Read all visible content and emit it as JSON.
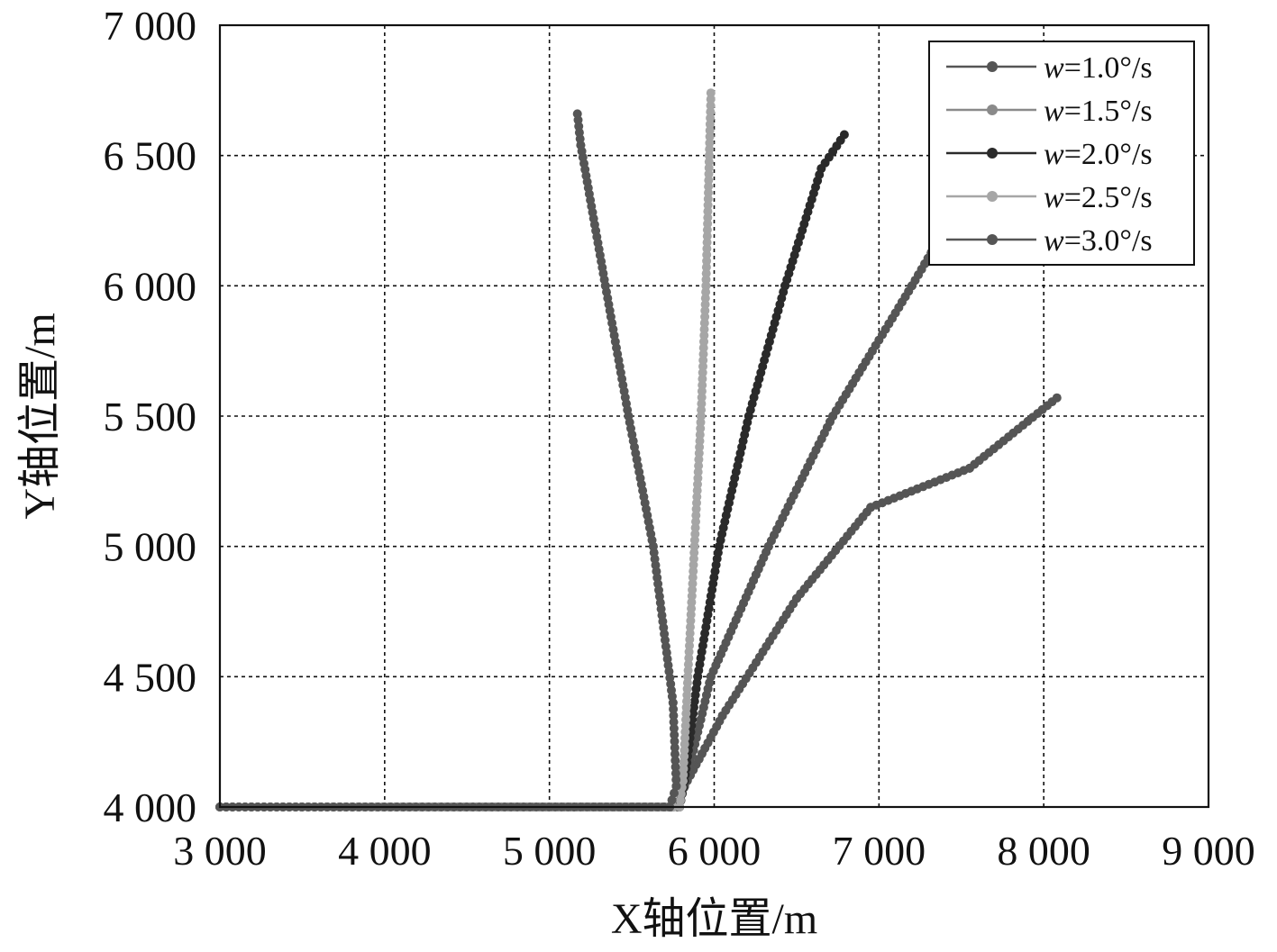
{
  "chart_data": {
    "type": "line",
    "xlabel": "X轴位置/m",
    "ylabel": "Y轴位置/m",
    "xlim": [
      3000,
      9000
    ],
    "ylim": [
      4000,
      7000
    ],
    "x_ticks": [
      "3 000",
      "4 000",
      "5 000",
      "6 000",
      "7 000",
      "8 000",
      "9 000"
    ],
    "y_ticks": [
      "4 000",
      "4 500",
      "5 000",
      "5 500",
      "6 000",
      "6 500",
      "7 000"
    ],
    "grid": true,
    "legend_position": "top-right",
    "series": [
      {
        "name": "w=1.0°/s",
        "color": "#555555",
        "dot_color": "#555555",
        "points": [
          [
            3000,
            4000
          ],
          [
            5780,
            4000
          ],
          [
            5830,
            4100
          ],
          [
            5980,
            4500
          ],
          [
            6330,
            5000
          ],
          [
            6720,
            5500
          ],
          [
            7200,
            6000
          ],
          [
            7550,
            6380
          ]
        ]
      },
      {
        "name": "w=1.5°/s",
        "color": "#8a8a8a",
        "dot_color": "#8a8a8a",
        "points": [
          [
            3000,
            4000
          ],
          [
            5780,
            4000
          ],
          [
            5830,
            4100
          ],
          [
            5980,
            4500
          ],
          [
            6330,
            5000
          ],
          [
            6720,
            5500
          ],
          [
            7200,
            6000
          ],
          [
            7550,
            6380
          ]
        ]
      },
      {
        "name": "w=2.0°/s",
        "color": "#2a2a2a",
        "dot_color": "#2a2a2a",
        "points": [
          [
            3000,
            4000
          ],
          [
            5790,
            4000
          ],
          [
            5820,
            4100
          ],
          [
            5900,
            4500
          ],
          [
            6030,
            5000
          ],
          [
            6210,
            5500
          ],
          [
            6430,
            6000
          ],
          [
            6650,
            6450
          ],
          [
            6790,
            6580
          ]
        ]
      },
      {
        "name": "w=2.5°/s",
        "color": "#a6a6a6",
        "dot_color": "#a6a6a6",
        "points": [
          [
            3000,
            4000
          ],
          [
            5790,
            4000
          ],
          [
            5810,
            4100
          ],
          [
            5840,
            4500
          ],
          [
            5880,
            5000
          ],
          [
            5920,
            5500
          ],
          [
            5950,
            6000
          ],
          [
            5970,
            6500
          ],
          [
            5980,
            6740
          ]
        ]
      },
      {
        "name": "w=3.0°/s",
        "color": "#555555",
        "dot_color": "#555555",
        "points": [
          [
            3000,
            4000
          ],
          [
            5730,
            4000
          ],
          [
            5770,
            4080
          ],
          [
            5750,
            4400
          ],
          [
            5630,
            5000
          ],
          [
            5480,
            5500
          ],
          [
            5340,
            6000
          ],
          [
            5190,
            6540
          ],
          [
            5170,
            6660
          ]
        ]
      },
      {
        "name": "",
        "color": "#555555",
        "dot_color": "#555555",
        "points": [
          [
            5780,
            4000
          ],
          [
            5820,
            4080
          ],
          [
            6050,
            4350
          ],
          [
            6500,
            4800
          ],
          [
            6950,
            5150
          ],
          [
            7550,
            5300
          ],
          [
            8080,
            5570
          ]
        ]
      }
    ]
  }
}
